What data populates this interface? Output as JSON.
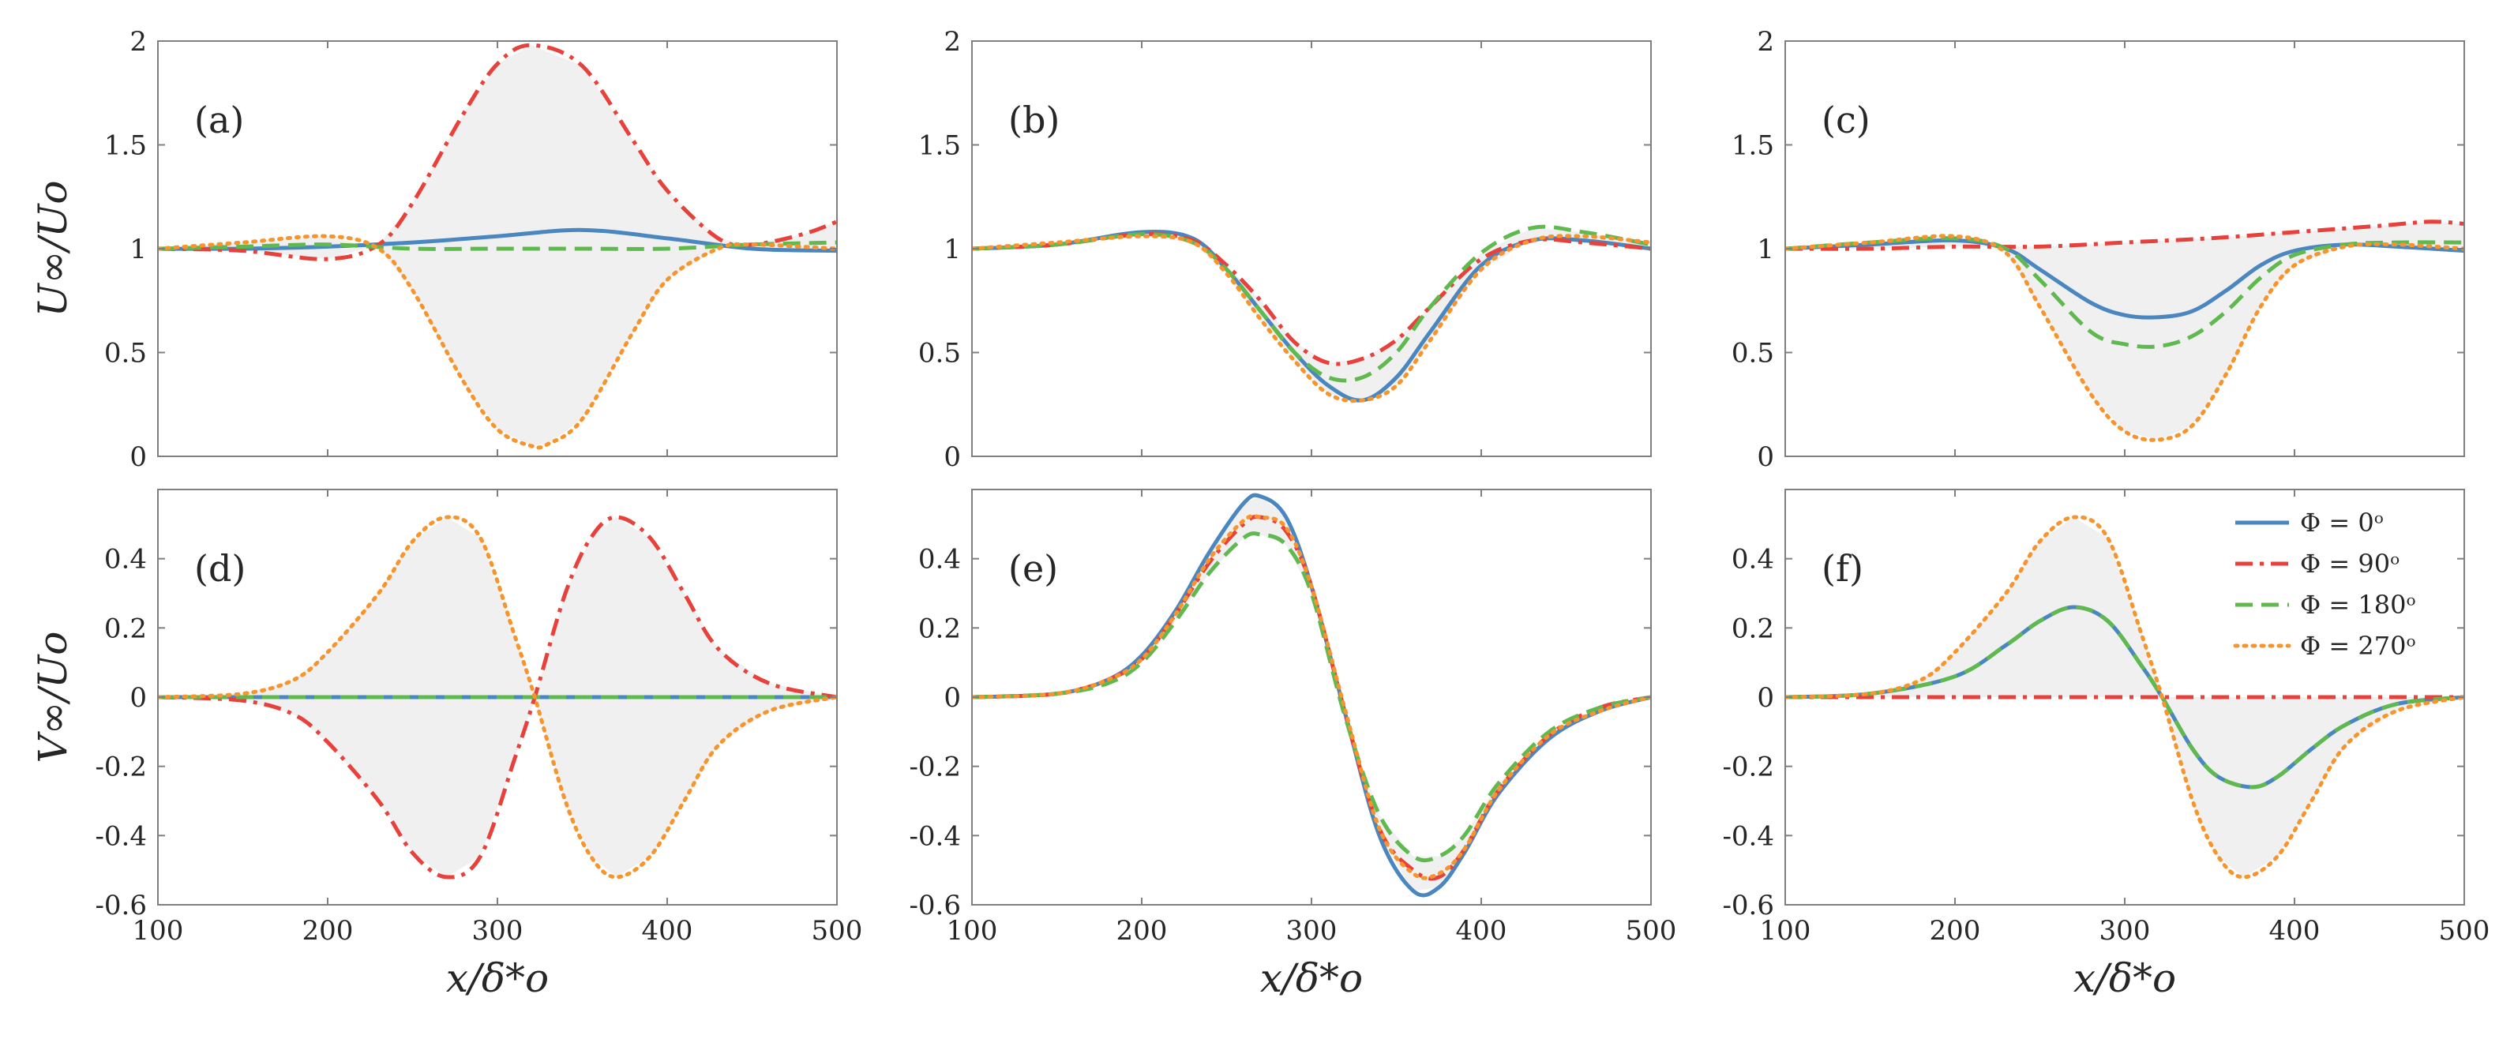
{
  "figure": {
    "x_label": "x/δ*o",
    "x_ticks": [
      "100",
      "200",
      "300",
      "400",
      "500"
    ],
    "xlim": [
      100,
      500
    ],
    "shade_color": "#f0f0f0",
    "axis_color": "#7f7f7f",
    "rows": [
      {
        "y_label": "U∞/Uo",
        "ylim": [
          0,
          2
        ],
        "y_ticks": [
          0,
          0.5,
          1,
          1.5,
          2
        ],
        "y_tick_labels": [
          "0",
          "0.5",
          "1",
          "1.5",
          "2"
        ]
      },
      {
        "y_label": "V∞/Uo",
        "ylim": [
          -0.6,
          0.6
        ],
        "y_ticks": [
          -0.6,
          -0.4,
          -0.2,
          0,
          0.2,
          0.4
        ],
        "y_tick_labels": [
          "-0.6",
          "-0.4",
          "-0.2",
          "0",
          "0.2",
          "0.4"
        ]
      }
    ]
  },
  "legend": {
    "entries": [
      {
        "label": "Φ = 0ᵒ",
        "color": "#4a86c0",
        "dash": "solid"
      },
      {
        "label": "Φ = 90ᵒ",
        "color": "#e8403b",
        "dash": "dashdot"
      },
      {
        "label": "Φ = 180ᵒ",
        "color": "#5fb94f",
        "dash": "dashed"
      },
      {
        "label": "Φ = 270ᵒ",
        "color": "#f7952c",
        "dash": "dotted"
      }
    ]
  },
  "chart_data": [
    {
      "panel": "(a)",
      "type": "line",
      "xlabel": "",
      "ylabel": "U∞/Uo",
      "xlim": [
        100,
        500
      ],
      "ylim": [
        0,
        2
      ],
      "series": [
        {
          "name": "Φ = 0ᵒ",
          "x": [
            100,
            150,
            200,
            250,
            300,
            350,
            400,
            450,
            500
          ],
          "values": [
            1.0,
            1.0,
            1.01,
            1.03,
            1.06,
            1.09,
            1.05,
            1.0,
            0.99
          ]
        },
        {
          "name": "Φ = 90ᵒ",
          "x": [
            100,
            150,
            200,
            230,
            250,
            280,
            300,
            320,
            350,
            380,
            400,
            430,
            450,
            480,
            500
          ],
          "values": [
            1.0,
            0.99,
            0.95,
            1.02,
            1.22,
            1.65,
            1.89,
            1.98,
            1.88,
            1.52,
            1.28,
            1.05,
            1.02,
            1.07,
            1.13
          ]
        },
        {
          "name": "Φ = 180ᵒ",
          "x": [
            100,
            150,
            200,
            250,
            300,
            350,
            400,
            450,
            500
          ],
          "values": [
            1.0,
            1.01,
            1.02,
            1.0,
            1.0,
            1.0,
            1.0,
            1.02,
            1.03
          ]
        },
        {
          "name": "Φ = 270ᵒ",
          "x": [
            100,
            150,
            200,
            230,
            250,
            280,
            300,
            320,
            330,
            350,
            380,
            400,
            430,
            450,
            500
          ],
          "values": [
            1.0,
            1.03,
            1.06,
            1.0,
            0.8,
            0.36,
            0.13,
            0.05,
            0.06,
            0.18,
            0.6,
            0.85,
            1.0,
            1.02,
            1.0
          ]
        }
      ]
    },
    {
      "panel": "(b)",
      "type": "line",
      "xlabel": "",
      "ylabel": "",
      "xlim": [
        100,
        500
      ],
      "ylim": [
        0,
        2
      ],
      "series": [
        {
          "name": "Φ = 0ᵒ",
          "x": [
            100,
            150,
            200,
            230,
            250,
            270,
            290,
            310,
            330,
            350,
            370,
            400,
            430,
            460,
            500
          ],
          "values": [
            1.0,
            1.02,
            1.08,
            1.05,
            0.9,
            0.7,
            0.5,
            0.34,
            0.27,
            0.38,
            0.6,
            0.92,
            1.04,
            1.04,
            1.0
          ]
        },
        {
          "name": "Φ = 90ᵒ",
          "x": [
            100,
            150,
            200,
            230,
            250,
            270,
            290,
            310,
            330,
            350,
            370,
            400,
            430,
            460,
            500
          ],
          "values": [
            1.0,
            1.02,
            1.07,
            1.04,
            0.92,
            0.75,
            0.55,
            0.45,
            0.47,
            0.56,
            0.72,
            0.95,
            1.04,
            1.03,
            1.0
          ]
        },
        {
          "name": "Φ = 180ᵒ",
          "x": [
            100,
            150,
            200,
            230,
            250,
            270,
            290,
            310,
            330,
            350,
            370,
            400,
            430,
            460,
            500
          ],
          "values": [
            1.0,
            1.02,
            1.07,
            1.03,
            0.9,
            0.7,
            0.5,
            0.38,
            0.38,
            0.5,
            0.72,
            0.98,
            1.1,
            1.08,
            1.02
          ]
        },
        {
          "name": "Φ = 270ᵒ",
          "x": [
            100,
            150,
            200,
            230,
            250,
            270,
            290,
            310,
            330,
            350,
            370,
            400,
            430,
            460,
            500
          ],
          "values": [
            1.0,
            1.03,
            1.06,
            1.03,
            0.88,
            0.66,
            0.46,
            0.3,
            0.27,
            0.34,
            0.56,
            0.9,
            1.04,
            1.06,
            1.03
          ]
        }
      ]
    },
    {
      "panel": "(c)",
      "type": "line",
      "xlabel": "",
      "ylabel": "",
      "xlim": [
        100,
        500
      ],
      "ylim": [
        0,
        2
      ],
      "series": [
        {
          "name": "Φ = 0ᵒ",
          "x": [
            100,
            150,
            200,
            230,
            250,
            280,
            300,
            320,
            340,
            360,
            380,
            400,
            430,
            460,
            500
          ],
          "values": [
            1.0,
            1.02,
            1.04,
            1.0,
            0.9,
            0.74,
            0.68,
            0.67,
            0.7,
            0.8,
            0.92,
            0.99,
            1.02,
            1.01,
            0.99
          ]
        },
        {
          "name": "Φ = 90ᵒ",
          "x": [
            100,
            150,
            200,
            250,
            300,
            350,
            400,
            450,
            480,
            500
          ],
          "values": [
            1.0,
            1.0,
            1.01,
            1.01,
            1.03,
            1.05,
            1.08,
            1.11,
            1.13,
            1.12
          ]
        },
        {
          "name": "Φ = 180ᵒ",
          "x": [
            100,
            150,
            200,
            230,
            250,
            280,
            300,
            320,
            340,
            360,
            380,
            400,
            430,
            460,
            500
          ],
          "values": [
            1.0,
            1.03,
            1.05,
            1.0,
            0.85,
            0.6,
            0.54,
            0.53,
            0.58,
            0.7,
            0.86,
            0.97,
            1.02,
            1.03,
            1.03
          ]
        },
        {
          "name": "Φ = 270ᵒ",
          "x": [
            100,
            150,
            200,
            230,
            250,
            280,
            300,
            320,
            340,
            360,
            380,
            400,
            430,
            460,
            500
          ],
          "values": [
            1.0,
            1.03,
            1.06,
            0.98,
            0.72,
            0.3,
            0.12,
            0.08,
            0.15,
            0.4,
            0.72,
            0.92,
            1.01,
            1.02,
            1.0
          ]
        }
      ]
    },
    {
      "panel": "(d)",
      "type": "line",
      "xlabel": "x/δ*o",
      "ylabel": "V∞/Uo",
      "xlim": [
        100,
        500
      ],
      "ylim": [
        -0.6,
        0.6
      ],
      "series": [
        {
          "name": "Φ = 0ᵒ",
          "x": [
            100,
            500
          ],
          "values": [
            0,
            0
          ]
        },
        {
          "name": "Φ = 90ᵒ",
          "x": [
            100,
            150,
            180,
            200,
            230,
            250,
            270,
            290,
            310,
            322,
            340,
            355,
            370,
            390,
            410,
            430,
            460,
            500
          ],
          "values": [
            0,
            -0.01,
            -0.05,
            -0.13,
            -0.3,
            -0.45,
            -0.52,
            -0.46,
            -0.18,
            0,
            0.3,
            0.46,
            0.52,
            0.46,
            0.3,
            0.14,
            0.04,
            0
          ]
        },
        {
          "name": "Φ = 180ᵒ",
          "x": [
            100,
            500
          ],
          "values": [
            0,
            0
          ]
        },
        {
          "name": "Φ = 270ᵒ",
          "x": [
            100,
            150,
            180,
            200,
            230,
            250,
            270,
            290,
            310,
            322,
            340,
            355,
            370,
            390,
            410,
            430,
            460,
            500
          ],
          "values": [
            0,
            0.01,
            0.05,
            0.13,
            0.3,
            0.45,
            0.52,
            0.46,
            0.18,
            0,
            -0.3,
            -0.46,
            -0.52,
            -0.46,
            -0.3,
            -0.14,
            -0.04,
            0
          ]
        }
      ]
    },
    {
      "panel": "(e)",
      "type": "line",
      "xlabel": "x/δ*o",
      "ylabel": "",
      "xlim": [
        100,
        500
      ],
      "ylim": [
        -0.6,
        0.6
      ],
      "series": [
        {
          "name": "Φ = 0ᵒ",
          "x": [
            100,
            150,
            180,
            200,
            220,
            240,
            260,
            270,
            285,
            300,
            320,
            340,
            360,
            375,
            390,
            410,
            440,
            470,
            500
          ],
          "values": [
            0,
            0.01,
            0.05,
            0.12,
            0.25,
            0.42,
            0.56,
            0.58,
            0.52,
            0.32,
            -0.05,
            -0.4,
            -0.56,
            -0.55,
            -0.45,
            -0.28,
            -0.12,
            -0.04,
            0
          ]
        },
        {
          "name": "Φ = 90ᵒ",
          "x": [
            100,
            150,
            180,
            200,
            220,
            240,
            260,
            270,
            285,
            300,
            320,
            340,
            360,
            375,
            390,
            410,
            440,
            470,
            500
          ],
          "values": [
            0,
            0.01,
            0.05,
            0.11,
            0.24,
            0.39,
            0.5,
            0.52,
            0.48,
            0.32,
            -0.05,
            -0.38,
            -0.5,
            -0.52,
            -0.44,
            -0.27,
            -0.11,
            -0.03,
            0
          ]
        },
        {
          "name": "Φ = 180ᵒ",
          "x": [
            100,
            150,
            180,
            200,
            220,
            240,
            260,
            270,
            285,
            300,
            320,
            340,
            360,
            375,
            390,
            410,
            440,
            470,
            500
          ],
          "values": [
            0,
            0.01,
            0.04,
            0.1,
            0.22,
            0.36,
            0.46,
            0.47,
            0.44,
            0.3,
            -0.06,
            -0.34,
            -0.46,
            -0.46,
            -0.4,
            -0.25,
            -0.1,
            -0.03,
            0
          ]
        },
        {
          "name": "Φ = 270ᵒ",
          "x": [
            100,
            150,
            180,
            200,
            220,
            240,
            260,
            270,
            285,
            300,
            320,
            340,
            360,
            375,
            390,
            410,
            440,
            470,
            500
          ],
          "values": [
            0,
            0.01,
            0.05,
            0.11,
            0.24,
            0.4,
            0.51,
            0.52,
            0.49,
            0.32,
            -0.04,
            -0.38,
            -0.51,
            -0.51,
            -0.44,
            -0.27,
            -0.11,
            -0.04,
            0
          ]
        }
      ]
    },
    {
      "panel": "(f)",
      "type": "line",
      "xlabel": "x/δ*o",
      "ylabel": "",
      "xlim": [
        100,
        500
      ],
      "ylim": [
        -0.6,
        0.6
      ],
      "series": [
        {
          "name": "Φ = 0ᵒ",
          "x": [
            100,
            150,
            200,
            230,
            250,
            270,
            290,
            310,
            322,
            340,
            355,
            375,
            390,
            410,
            430,
            460,
            500
          ],
          "values": [
            0,
            0.01,
            0.06,
            0.15,
            0.22,
            0.26,
            0.22,
            0.09,
            0,
            -0.15,
            -0.23,
            -0.26,
            -0.23,
            -0.15,
            -0.08,
            -0.02,
            0
          ]
        },
        {
          "name": "Φ = 90ᵒ",
          "x": [
            100,
            500
          ],
          "values": [
            0,
            0
          ]
        },
        {
          "name": "Φ = 180ᵒ",
          "x": [
            100,
            150,
            200,
            230,
            250,
            270,
            290,
            310,
            322,
            340,
            355,
            375,
            390,
            410,
            430,
            460,
            500
          ],
          "values": [
            0,
            0.01,
            0.06,
            0.15,
            0.22,
            0.26,
            0.22,
            0.09,
            0,
            -0.15,
            -0.23,
            -0.26,
            -0.23,
            -0.15,
            -0.08,
            -0.02,
            0
          ]
        },
        {
          "name": "Φ = 270ᵒ",
          "x": [
            100,
            150,
            180,
            200,
            230,
            250,
            270,
            290,
            310,
            322,
            340,
            355,
            370,
            390,
            410,
            430,
            460,
            500
          ],
          "values": [
            0,
            0.01,
            0.05,
            0.13,
            0.3,
            0.45,
            0.52,
            0.46,
            0.18,
            0,
            -0.3,
            -0.46,
            -0.52,
            -0.46,
            -0.3,
            -0.14,
            -0.04,
            0
          ]
        }
      ]
    }
  ]
}
